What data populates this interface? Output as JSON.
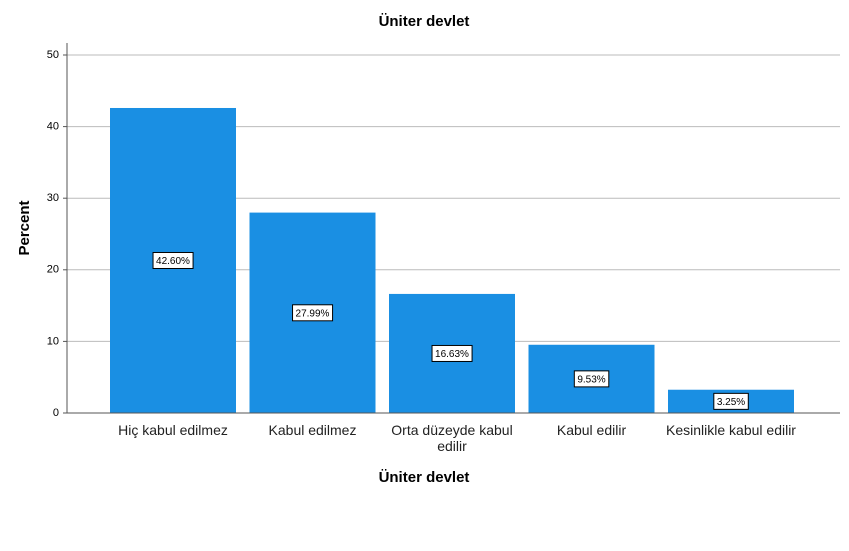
{
  "chart_data": {
    "type": "bar",
    "title": "Üniter devlet",
    "x_label": "Üniter devlet",
    "y_label": "Percent",
    "categories": [
      "Hiç kabul edilmez",
      "Kabul edilmez",
      "Orta düzeyde kabul edilir",
      "Kabul edilir",
      "Kesinlikle kabul edilir"
    ],
    "values": [
      42.6,
      27.99,
      16.63,
      9.53,
      3.25
    ],
    "value_labels": [
      "42.60%",
      "27.99%",
      "16.63%",
      "9.53%",
      "3.25%"
    ],
    "color": "#1a8fe3",
    "ylim": [
      0,
      50
    ],
    "yticks": [
      0,
      10,
      20,
      30,
      40,
      50
    ],
    "grid": true
  }
}
